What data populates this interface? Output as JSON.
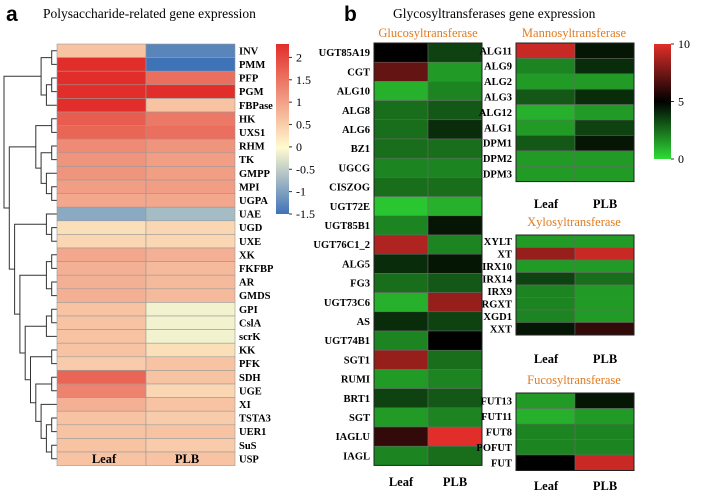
{
  "panel_a": {
    "letter": "a",
    "title": "Polysaccharide-related gene expression",
    "columns": [
      "Leaf",
      "PLB"
    ],
    "colorbar": {
      "ticks": [
        "2",
        "1.5",
        "1",
        "0.5",
        "0",
        "-0.5",
        "-1",
        "-1.5"
      ],
      "tick_values": [
        2,
        1.5,
        1,
        0.5,
        0,
        -0.5,
        -1,
        -1.5
      ],
      "min": -1.5,
      "max": 2.3
    },
    "genes": [
      "INV",
      "PMM",
      "PFP",
      "PGM",
      "FBPase",
      "HK",
      "UXS1",
      "RHM",
      "TK",
      "GMPP",
      "MPI",
      "UGPA",
      "UAE",
      "UGD",
      "UXE",
      "XK",
      "FKFBP",
      "AR",
      "GMDS",
      "GPI",
      "CslA",
      "scrK",
      "KK",
      "PFK",
      "SDH",
      "UGE",
      "XI",
      "TSTA3",
      "UER1",
      "SuS",
      "USP"
    ]
  },
  "panel_b": {
    "letter": "b",
    "title": "Glycosyltransferases gene expression",
    "columns": [
      "Leaf",
      "PLB"
    ],
    "colorbar": {
      "ticks": [
        "10",
        "5",
        "0"
      ],
      "tick_values": [
        10,
        5,
        0
      ],
      "min": 0,
      "max": 10
    },
    "groups": {
      "glucosyl": {
        "title": "Glucosyltransferase",
        "genes": [
          "UGT85A19",
          "CGT",
          "ALG10",
          "ALG8",
          "ALG6",
          "BZ1",
          "UGCG",
          "CISZOG",
          "UGT72E",
          "UGT85B1",
          "UGT76C1_2",
          "ALG5",
          "FG3",
          "UGT73C6",
          "AS",
          "UGT74B1",
          "SGT1",
          "RUMI",
          "BRT1",
          "SGT",
          "IAGLU",
          "IAGL"
        ]
      },
      "mannosyl": {
        "title": "Mannosyltransferase",
        "genes": [
          "ALG11",
          "ALG9",
          "ALG2",
          "ALG3",
          "ALG12",
          "ALG1",
          "DPM1",
          "DPM2",
          "DPM3"
        ]
      },
      "xylosyl": {
        "title": "Xylosyltransferase",
        "genes": [
          "XYLT",
          "XT",
          "IRX10",
          "IRX14",
          "IRX9",
          "RGXT",
          "XGD1",
          "XXT"
        ]
      },
      "fucosyl": {
        "title": "Fucosyltransferase",
        "genes": [
          "FUT13",
          "FUT11",
          "FUT8",
          "POFUT",
          "FUT"
        ]
      }
    }
  },
  "chart_data": [
    {
      "type": "heatmap",
      "title": "Polysaccharide-related gene expression",
      "rows": [
        "INV",
        "PMM",
        "PFP",
        "PGM",
        "FBPase",
        "HK",
        "UXS1",
        "RHM",
        "TK",
        "GMPP",
        "MPI",
        "UGPA",
        "UAE",
        "UGD",
        "UXE",
        "XK",
        "FKFBP",
        "AR",
        "GMDS",
        "GPI",
        "CslA",
        "scrK",
        "KK",
        "PFK",
        "SDH",
        "UGE",
        "XI",
        "TSTA3",
        "UER1",
        "SuS",
        "USP"
      ],
      "columns": [
        "Leaf",
        "PLB"
      ],
      "values": [
        [
          0.6,
          -1.3
        ],
        [
          2.2,
          -1.5
        ],
        [
          2.2,
          1.5
        ],
        [
          2.2,
          2.2
        ],
        [
          2.2,
          0.6
        ],
        [
          1.7,
          1.4
        ],
        [
          1.6,
          1.5
        ],
        [
          1.2,
          1.1
        ],
        [
          1.1,
          1.0
        ],
        [
          1.1,
          1.0
        ],
        [
          1.0,
          1.0
        ],
        [
          0.9,
          0.9
        ],
        [
          -0.9,
          -0.7
        ],
        [
          0.3,
          0.4
        ],
        [
          0.4,
          0.4
        ],
        [
          0.9,
          0.8
        ],
        [
          0.8,
          0.7
        ],
        [
          0.8,
          0.7
        ],
        [
          0.8,
          0.7
        ],
        [
          0.6,
          -0.1
        ],
        [
          0.6,
          -0.1
        ],
        [
          0.6,
          -0.1
        ],
        [
          0.6,
          0.3
        ],
        [
          0.5,
          0.6
        ],
        [
          1.6,
          0.6
        ],
        [
          1.3,
          0.4
        ],
        [
          0.8,
          0.6
        ],
        [
          0.6,
          0.5
        ],
        [
          0.6,
          0.6
        ],
        [
          0.6,
          0.5
        ],
        [
          0.6,
          0.6
        ]
      ],
      "colorbar_range": [
        -1.5,
        2.3
      ],
      "colorbar_ticks": [
        2,
        1.5,
        1,
        0.5,
        0,
        -0.5,
        -1,
        -1.5
      ]
    },
    {
      "type": "heatmap",
      "title": "Glycosyltransferases gene expression",
      "colorbar_range": [
        0,
        10
      ],
      "colorbar_ticks": [
        10,
        5,
        0
      ],
      "columns": [
        "Leaf",
        "PLB"
      ],
      "groups": [
        {
          "name": "Glucosyltransferase",
          "rows": [
            "UGT85A19",
            "CGT",
            "ALG10",
            "ALG8",
            "ALG6",
            "BZ1",
            "UGCG",
            "CISZOG",
            "UGT72E",
            "UGT85B1",
            "UGT76C1_2",
            "ALG5",
            "FG3",
            "UGT73C6",
            "AS",
            "UGT74B1",
            "SGT1",
            "RUMI",
            "BRT1",
            "SGT",
            "IAGLU",
            "IAGL"
          ],
          "values": [
            [
              5,
              3.5
            ],
            [
              7,
              1.5
            ],
            [
              1,
              2
            ],
            [
              2.5,
              3
            ],
            [
              2.5,
              4
            ],
            [
              2.5,
              2.5
            ],
            [
              2,
              2
            ],
            [
              2.5,
              2.5
            ],
            [
              0.5,
              1
            ],
            [
              2,
              4.5
            ],
            [
              8.5,
              2
            ],
            [
              4,
              4.5
            ],
            [
              2.5,
              3
            ],
            [
              1,
              8
            ],
            [
              4,
              3.5
            ],
            [
              2,
              5
            ],
            [
              8,
              2.5
            ],
            [
              1.5,
              2
            ],
            [
              3.5,
              3
            ],
            [
              1.5,
              2
            ],
            [
              6,
              9.5
            ],
            [
              2,
              2.5
            ]
          ]
        },
        {
          "name": "Mannosyltransferase",
          "rows": [
            "ALG11",
            "ALG9",
            "ALG2",
            "ALG3",
            "ALG12",
            "ALG1",
            "DPM1",
            "DPM2",
            "DPM3"
          ],
          "values": [
            [
              9,
              4.5
            ],
            [
              2,
              4
            ],
            [
              1.5,
              1.5
            ],
            [
              3,
              4
            ],
            [
              1,
              1.5
            ],
            [
              1.5,
              3.5
            ],
            [
              3,
              4.5
            ],
            [
              1.5,
              1.5
            ],
            [
              1.5,
              1.5
            ]
          ]
        },
        {
          "name": "Xylosyltransferase",
          "rows": [
            "XYLT",
            "XT",
            "IRX10",
            "IRX14",
            "IRX9",
            "RGXT",
            "XGD1",
            "XXT"
          ],
          "values": [
            [
              1.5,
              1.5
            ],
            [
              8,
              9
            ],
            [
              1.5,
              1.5
            ],
            [
              3.5,
              2.5
            ],
            [
              2,
              1.5
            ],
            [
              2,
              1.5
            ],
            [
              2,
              1.5
            ],
            [
              4.5,
              6
            ]
          ]
        },
        {
          "name": "Fucosyltransferase",
          "rows": [
            "FUT13",
            "FUT11",
            "FUT8",
            "POFUT",
            "FUT"
          ],
          "values": [
            [
              1.5,
              4.5
            ],
            [
              1,
              1.5
            ],
            [
              2,
              2
            ],
            [
              2,
              2
            ],
            [
              5,
              9
            ]
          ]
        }
      ]
    }
  ]
}
